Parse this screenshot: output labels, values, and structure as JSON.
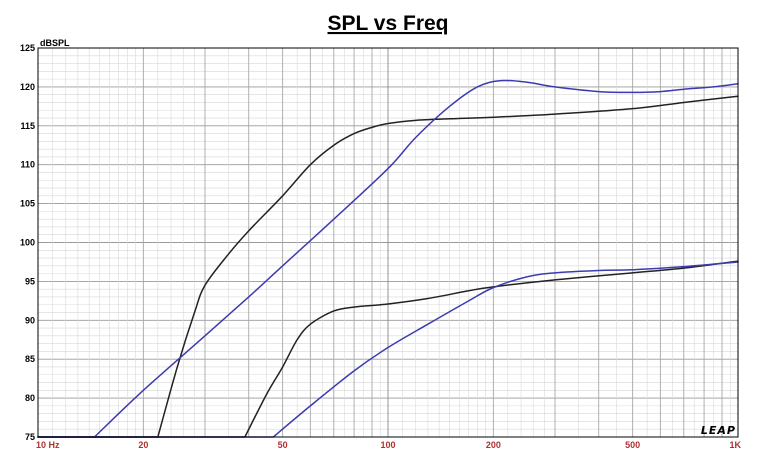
{
  "chart_data": {
    "type": "line",
    "title": "SPL vs Freq",
    "ylabel": "dBSPL",
    "xlabel": "",
    "xscale": "log",
    "xlim": [
      10,
      1000
    ],
    "ylim": [
      75,
      125
    ],
    "grid": true,
    "legend": "none",
    "watermark": "LEAP",
    "x_ticks": [
      {
        "value": 10,
        "label": "10 Hz"
      },
      {
        "value": 20,
        "label": "20"
      },
      {
        "value": 50,
        "label": "50"
      },
      {
        "value": 100,
        "label": "100"
      },
      {
        "value": 200,
        "label": "200"
      },
      {
        "value": 500,
        "label": "500"
      },
      {
        "value": 1000,
        "label": "1K"
      }
    ],
    "y_ticks": [
      75,
      80,
      85,
      90,
      95,
      100,
      105,
      110,
      115,
      120,
      125
    ],
    "series": [
      {
        "color": "#222222",
        "points": [
          [
            22,
            75
          ],
          [
            25,
            84
          ],
          [
            28,
            91
          ],
          [
            30,
            94.5
          ],
          [
            35,
            98.5
          ],
          [
            40,
            101.5
          ],
          [
            50,
            106
          ],
          [
            60,
            110
          ],
          [
            70,
            112.5
          ],
          [
            80,
            114
          ],
          [
            90,
            114.8
          ],
          [
            100,
            115.3
          ],
          [
            120,
            115.7
          ],
          [
            150,
            115.9
          ],
          [
            200,
            116.1
          ],
          [
            300,
            116.5
          ],
          [
            500,
            117.2
          ],
          [
            700,
            118
          ],
          [
            1000,
            118.8
          ]
        ]
      },
      {
        "color": "#3b3bb0",
        "points": [
          [
            14.5,
            75
          ],
          [
            20,
            81
          ],
          [
            30,
            88
          ],
          [
            40,
            93
          ],
          [
            50,
            97
          ],
          [
            70,
            103
          ],
          [
            100,
            109.5
          ],
          [
            120,
            113.5
          ],
          [
            150,
            117.5
          ],
          [
            180,
            120
          ],
          [
            210,
            120.8
          ],
          [
            250,
            120.6
          ],
          [
            300,
            120
          ],
          [
            400,
            119.4
          ],
          [
            500,
            119.3
          ],
          [
            600,
            119.4
          ],
          [
            700,
            119.7
          ],
          [
            850,
            120
          ],
          [
            1000,
            120.4
          ]
        ]
      },
      {
        "color": "#222222",
        "points": [
          [
            39,
            75
          ],
          [
            45,
            80.5
          ],
          [
            50,
            84
          ],
          [
            55,
            87.5
          ],
          [
            60,
            89.5
          ],
          [
            70,
            91.2
          ],
          [
            80,
            91.7
          ],
          [
            100,
            92.1
          ],
          [
            130,
            92.8
          ],
          [
            170,
            93.8
          ],
          [
            200,
            94.3
          ],
          [
            300,
            95.2
          ],
          [
            500,
            96.1
          ],
          [
            700,
            96.7
          ],
          [
            1000,
            97.6
          ]
        ]
      },
      {
        "color": "#3b3bb0",
        "points": [
          [
            47,
            75
          ],
          [
            60,
            79
          ],
          [
            80,
            83.5
          ],
          [
            100,
            86.5
          ],
          [
            130,
            89.5
          ],
          [
            170,
            92.5
          ],
          [
            200,
            94.2
          ],
          [
            250,
            95.6
          ],
          [
            300,
            96.1
          ],
          [
            400,
            96.4
          ],
          [
            500,
            96.5
          ],
          [
            700,
            96.9
          ],
          [
            1000,
            97.5
          ]
        ]
      }
    ]
  }
}
